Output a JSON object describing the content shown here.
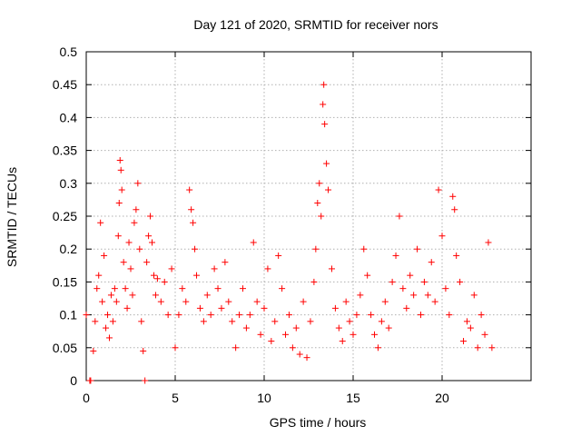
{
  "chart_data": {
    "type": "scatter",
    "title": "Day 121 of 2020, SRMTID for receiver nors",
    "xlabel": "GPS time / hours",
    "ylabel": "SRMTID / TECUs",
    "xlim": [
      0,
      25
    ],
    "ylim": [
      0,
      0.5
    ],
    "x_ticks": [
      0,
      5,
      10,
      15,
      20
    ],
    "x_tick_labels": [
      "0",
      "5",
      "10",
      "15",
      "20"
    ],
    "y_ticks": [
      0,
      0.05,
      0.1,
      0.15,
      0.2,
      0.25,
      0.3,
      0.35,
      0.4,
      0.45,
      0.5
    ],
    "y_tick_labels": [
      "0",
      "0.05",
      "0.1",
      "0.15",
      "0.2",
      "0.25",
      "0.3",
      "0.35",
      "0.4",
      "0.45",
      "0.5"
    ],
    "grid": true,
    "marker": "+",
    "series_color": "#ff0000",
    "series": [
      {
        "name": "SRMTID",
        "points": [
          [
            0.0,
            0.1
          ],
          [
            0.2,
            0.0
          ],
          [
            0.25,
            0.0
          ],
          [
            3.3,
            0.0
          ],
          [
            0.4,
            0.045
          ],
          [
            0.5,
            0.09
          ],
          [
            0.6,
            0.14
          ],
          [
            0.7,
            0.16
          ],
          [
            0.8,
            0.24
          ],
          [
            0.9,
            0.12
          ],
          [
            1.0,
            0.19
          ],
          [
            1.1,
            0.08
          ],
          [
            1.2,
            0.1
          ],
          [
            1.3,
            0.065
          ],
          [
            1.4,
            0.13
          ],
          [
            1.5,
            0.09
          ],
          [
            1.6,
            0.14
          ],
          [
            1.7,
            0.12
          ],
          [
            1.8,
            0.22
          ],
          [
            1.85,
            0.27
          ],
          [
            1.9,
            0.335
          ],
          [
            1.95,
            0.32
          ],
          [
            2.0,
            0.29
          ],
          [
            2.1,
            0.18
          ],
          [
            2.2,
            0.14
          ],
          [
            2.3,
            0.11
          ],
          [
            2.4,
            0.21
          ],
          [
            2.5,
            0.17
          ],
          [
            2.6,
            0.13
          ],
          [
            2.7,
            0.24
          ],
          [
            2.8,
            0.26
          ],
          [
            2.9,
            0.3
          ],
          [
            3.0,
            0.2
          ],
          [
            3.1,
            0.09
          ],
          [
            3.2,
            0.045
          ],
          [
            3.4,
            0.18
          ],
          [
            3.5,
            0.22
          ],
          [
            3.6,
            0.25
          ],
          [
            3.7,
            0.21
          ],
          [
            3.8,
            0.16
          ],
          [
            3.9,
            0.13
          ],
          [
            4.0,
            0.155
          ],
          [
            4.2,
            0.12
          ],
          [
            4.4,
            0.15
          ],
          [
            4.6,
            0.1
          ],
          [
            4.8,
            0.17
          ],
          [
            5.0,
            0.05
          ],
          [
            5.2,
            0.1
          ],
          [
            5.4,
            0.14
          ],
          [
            5.6,
            0.12
          ],
          [
            5.8,
            0.29
          ],
          [
            5.9,
            0.26
          ],
          [
            6.0,
            0.24
          ],
          [
            6.1,
            0.2
          ],
          [
            6.2,
            0.16
          ],
          [
            6.4,
            0.11
          ],
          [
            6.6,
            0.09
          ],
          [
            6.8,
            0.13
          ],
          [
            7.0,
            0.1
          ],
          [
            7.2,
            0.17
          ],
          [
            7.4,
            0.14
          ],
          [
            7.6,
            0.11
          ],
          [
            7.8,
            0.18
          ],
          [
            8.0,
            0.12
          ],
          [
            8.2,
            0.09
          ],
          [
            8.4,
            0.05
          ],
          [
            8.6,
            0.1
          ],
          [
            8.8,
            0.14
          ],
          [
            9.0,
            0.08
          ],
          [
            9.2,
            0.1
          ],
          [
            9.4,
            0.21
          ],
          [
            9.6,
            0.12
          ],
          [
            9.8,
            0.07
          ],
          [
            10.0,
            0.11
          ],
          [
            10.2,
            0.17
          ],
          [
            10.4,
            0.06
          ],
          [
            10.6,
            0.09
          ],
          [
            10.8,
            0.19
          ],
          [
            11.0,
            0.14
          ],
          [
            11.2,
            0.07
          ],
          [
            11.4,
            0.1
          ],
          [
            11.6,
            0.05
          ],
          [
            11.8,
            0.08
          ],
          [
            12.0,
            0.04
          ],
          [
            12.2,
            0.12
          ],
          [
            12.4,
            0.035
          ],
          [
            12.6,
            0.09
          ],
          [
            12.8,
            0.15
          ],
          [
            12.9,
            0.2
          ],
          [
            13.0,
            0.27
          ],
          [
            13.1,
            0.3
          ],
          [
            13.2,
            0.25
          ],
          [
            13.3,
            0.42
          ],
          [
            13.35,
            0.45
          ],
          [
            13.4,
            0.39
          ],
          [
            13.5,
            0.33
          ],
          [
            13.6,
            0.29
          ],
          [
            13.8,
            0.17
          ],
          [
            14.0,
            0.11
          ],
          [
            14.2,
            0.08
          ],
          [
            14.4,
            0.06
          ],
          [
            14.6,
            0.12
          ],
          [
            14.8,
            0.09
          ],
          [
            15.0,
            0.07
          ],
          [
            15.2,
            0.1
          ],
          [
            15.4,
            0.13
          ],
          [
            15.6,
            0.2
          ],
          [
            15.8,
            0.16
          ],
          [
            16.0,
            0.1
          ],
          [
            16.2,
            0.07
          ],
          [
            16.4,
            0.05
          ],
          [
            16.6,
            0.09
          ],
          [
            16.8,
            0.12
          ],
          [
            17.0,
            0.08
          ],
          [
            17.2,
            0.15
          ],
          [
            17.4,
            0.19
          ],
          [
            17.6,
            0.25
          ],
          [
            17.8,
            0.14
          ],
          [
            18.0,
            0.11
          ],
          [
            18.2,
            0.16
          ],
          [
            18.4,
            0.13
          ],
          [
            18.6,
            0.2
          ],
          [
            18.8,
            0.1
          ],
          [
            19.0,
            0.15
          ],
          [
            19.2,
            0.13
          ],
          [
            19.4,
            0.18
          ],
          [
            19.6,
            0.12
          ],
          [
            19.8,
            0.29
          ],
          [
            20.0,
            0.22
          ],
          [
            20.2,
            0.14
          ],
          [
            20.4,
            0.1
          ],
          [
            20.6,
            0.28
          ],
          [
            20.7,
            0.26
          ],
          [
            20.8,
            0.19
          ],
          [
            21.0,
            0.15
          ],
          [
            21.2,
            0.06
          ],
          [
            21.4,
            0.09
          ],
          [
            21.6,
            0.08
          ],
          [
            21.8,
            0.13
          ],
          [
            22.0,
            0.05
          ],
          [
            22.2,
            0.1
          ],
          [
            22.4,
            0.07
          ],
          [
            22.6,
            0.21
          ],
          [
            22.8,
            0.05
          ]
        ]
      }
    ]
  }
}
